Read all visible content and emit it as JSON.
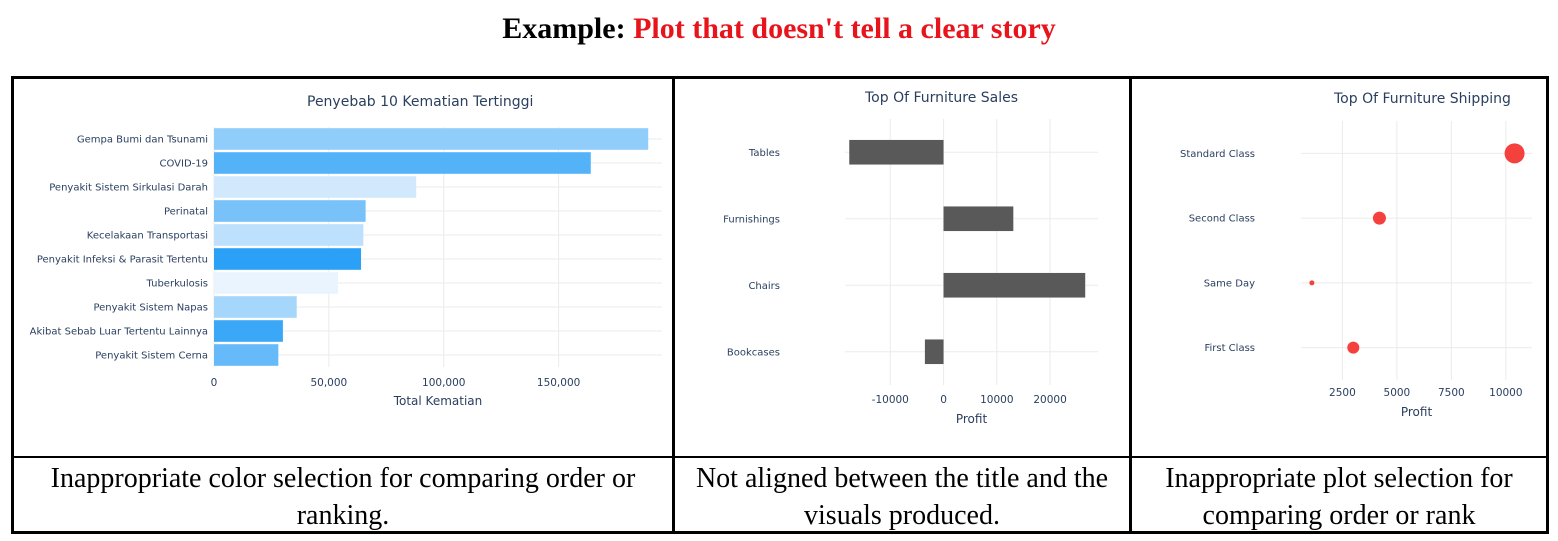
{
  "heading": {
    "prefix": "Example:",
    "highlight": "Plot that doesn't tell a clear story"
  },
  "captions": [
    "Inappropriate color selection for comparing order or ranking.",
    "Not aligned between the title and the visuals produced.",
    "Inappropriate plot selection for comparing order or rank"
  ],
  "chart_data": [
    {
      "type": "bar",
      "orientation": "horizontal",
      "title": "Penyebab 10 Kematian Tertinggi",
      "xlabel": "Total Kematian",
      "ylabel": "",
      "xlim": [
        0,
        195000
      ],
      "xticks": [
        0,
        50000,
        100000,
        150000
      ],
      "xtick_labels": [
        "0",
        "50,000",
        "100,000",
        "150,000"
      ],
      "categories": [
        "Gempa Bumi dan Tsunami",
        "COVID-19",
        "Penyakit Sistem Sirkulasi Darah",
        "Perinatal",
        "Kecelakaan Transportasi",
        "Penyakit Infeksi & Parasit Tertentu",
        "Tuberkulosis",
        "Penyakit Sistem Napas",
        "Akibat Sebab Luar Tertentu Lainnya",
        "Penyakit Sistem Cerna"
      ],
      "values": [
        189000,
        164000,
        88000,
        66000,
        65000,
        64000,
        54000,
        36000,
        30000,
        28000
      ],
      "colors": [
        "#90cdfa",
        "#54b3f8",
        "#d2e9fd",
        "#78c1f9",
        "#bde0fc",
        "#2aa0f6",
        "#eaf4fe",
        "#a5d6fb",
        "#3aa8f7",
        "#66baf9"
      ],
      "grid": true
    },
    {
      "type": "bar",
      "orientation": "horizontal",
      "title": "Top Of Furniture Sales",
      "xlabel": "Profit",
      "ylabel": "",
      "xlim": [
        -18500,
        29000
      ],
      "xticks": [
        -10000,
        0,
        10000,
        20000
      ],
      "xtick_labels": [
        "-10000",
        "0",
        "10000",
        "20000"
      ],
      "categories": [
        "Tables",
        "Furnishings",
        "Chairs",
        "Bookcases"
      ],
      "values": [
        -17700,
        13100,
        26600,
        -3500
      ],
      "color": "#595959",
      "grid": true
    },
    {
      "type": "scatter",
      "title": "Top Of Furniture Shipping",
      "xlabel": "Profit",
      "ylabel": "",
      "xlim": [
        600,
        11200
      ],
      "xticks": [
        2500,
        5000,
        7500,
        10000
      ],
      "xtick_labels": [
        "2500",
        "5000",
        "7500",
        "10000"
      ],
      "categories": [
        "Standard Class",
        "Second Class",
        "Same Day",
        "First Class"
      ],
      "values": [
        10400,
        4200,
        1100,
        3000
      ],
      "sizes": [
        10,
        6.5,
        2.5,
        6
      ],
      "color": "#f5413e",
      "grid": true
    }
  ]
}
